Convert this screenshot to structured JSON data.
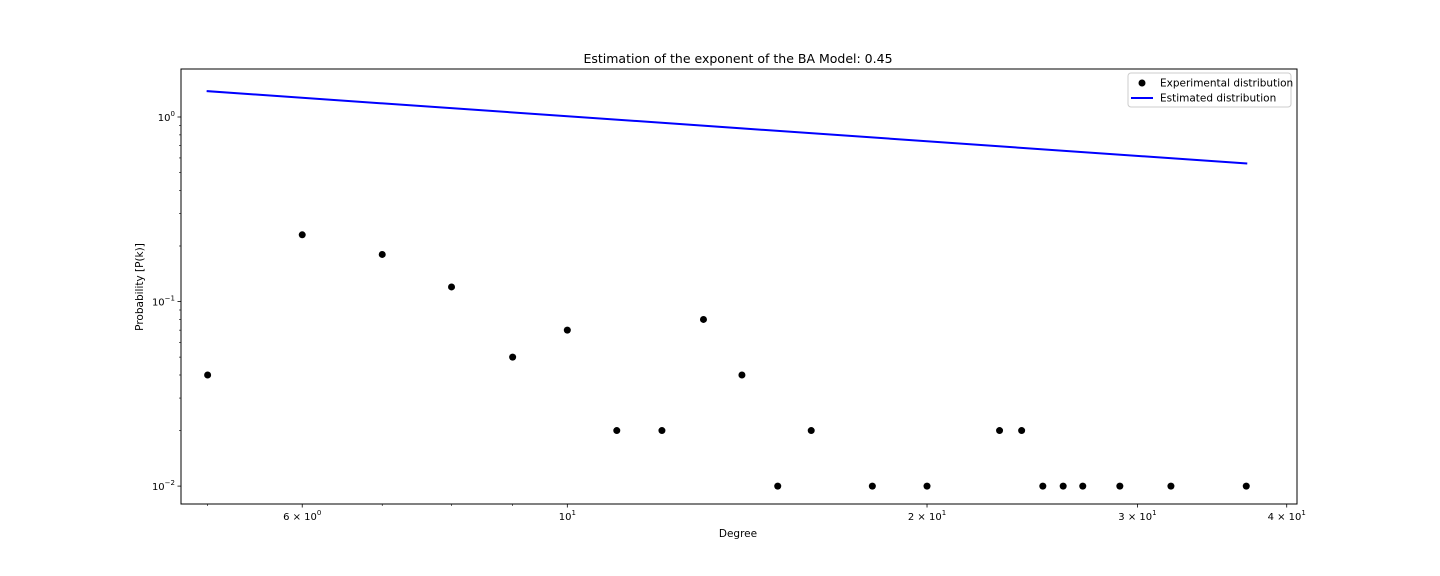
{
  "chart_data": {
    "type": "scatter",
    "title": "Estimation of the exponent of the BA Model:  0.45",
    "xlabel": "Degree",
    "ylabel": "Probability [P(k)]",
    "xscale": "log",
    "yscale": "log",
    "xlim": [
      4.75,
      40.8
    ],
    "ylim": [
      0.008,
      1.82
    ],
    "grid": false,
    "legend_placement": "upper right",
    "x_ticks": [
      {
        "value": 6,
        "base": "6 × 10",
        "exp": "0"
      },
      {
        "value": 10,
        "base": "10",
        "exp": "1"
      },
      {
        "value": 20,
        "base": "2 × 10",
        "exp": "1"
      },
      {
        "value": 30,
        "base": "3 × 10",
        "exp": "1"
      },
      {
        "value": 40,
        "base": "4 × 10",
        "exp": "1"
      }
    ],
    "y_ticks": [
      {
        "value": 1,
        "base": "10",
        "exp": "0"
      },
      {
        "value": 0.1,
        "base": "10",
        "exp": "−1"
      },
      {
        "value": 0.01,
        "base": "10",
        "exp": "−2"
      }
    ],
    "series": [
      {
        "name": "Experimental distribution",
        "kind": "scatter",
        "color": "#000000",
        "x": [
          5,
          6,
          7,
          8,
          9,
          10,
          11,
          12,
          13,
          14,
          15,
          16,
          18,
          20,
          23,
          24,
          25,
          26,
          27,
          29,
          32,
          37
        ],
        "y": [
          0.04,
          0.23,
          0.18,
          0.12,
          0.05,
          0.07,
          0.02,
          0.02,
          0.08,
          0.04,
          0.01,
          0.02,
          0.01,
          0.01,
          0.02,
          0.02,
          0.01,
          0.01,
          0.01,
          0.01,
          0.01,
          0.01
        ]
      },
      {
        "name": "Estimated distribution",
        "kind": "line",
        "color": "#0000ff",
        "x": [
          5,
          37
        ],
        "y": [
          1.38,
          0.56
        ]
      }
    ]
  }
}
